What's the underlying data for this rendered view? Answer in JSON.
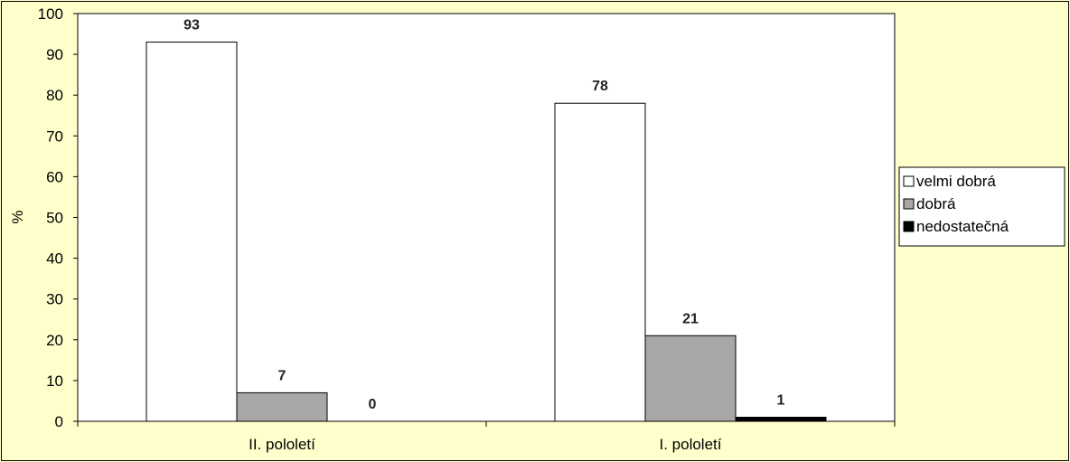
{
  "chart_data": {
    "type": "bar",
    "title": "",
    "xlabel": "",
    "ylabel": "%",
    "ylim": [
      0,
      100
    ],
    "yticks": [
      0,
      10,
      20,
      30,
      40,
      50,
      60,
      70,
      80,
      90,
      100
    ],
    "categories": [
      "II. pololetí",
      "I. pololetí"
    ],
    "series": [
      {
        "name": "velmi dobrá",
        "values": [
          93,
          78
        ],
        "color": "#ffffff"
      },
      {
        "name": "dobrá",
        "values": [
          7,
          21
        ],
        "color": "#a9a6a6"
      },
      {
        "name": "nedostatečná",
        "values": [
          0,
          1
        ],
        "color": "#000000"
      }
    ],
    "grid": false,
    "legend": "right",
    "colors": {
      "background": "#ffffcc",
      "plot_area": "#ffffff",
      "border": "#000000"
    }
  }
}
